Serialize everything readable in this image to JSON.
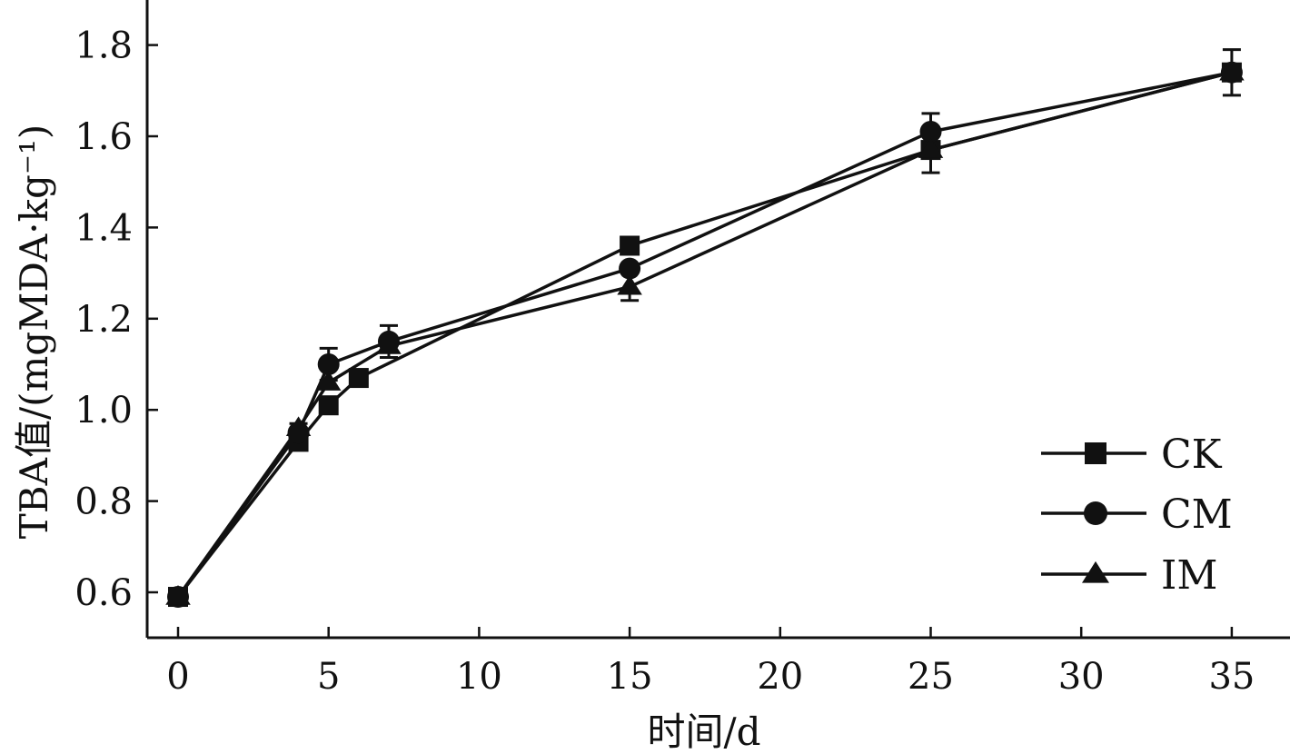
{
  "chart_data": {
    "type": "line",
    "title": "",
    "xlabel": "时间/d",
    "ylabel": "TBA值/(mgMDA·kg⁻¹)",
    "xlim": [
      -1,
      37
    ],
    "ylim": [
      0.51,
      1.9
    ],
    "x_ticks": [
      0,
      5,
      10,
      15,
      20,
      25,
      30,
      35
    ],
    "x_tick_labels": [
      "0",
      "5",
      "10",
      "15",
      "20",
      "25",
      "30",
      "35"
    ],
    "y_ticks": [
      0.6,
      0.8,
      1.0,
      1.2,
      1.4,
      1.6,
      1.8
    ],
    "y_tick_labels": [
      "0.6",
      "0.8",
      "1.0",
      "1.2",
      "1.4",
      "1.6",
      "1.8"
    ],
    "grid": false,
    "legend_position": "bottom-right",
    "series": [
      {
        "name": "CK",
        "marker": "square",
        "x": [
          0,
          4,
          5,
          6,
          15,
          25,
          35
        ],
        "y": [
          0.59,
          0.93,
          1.01,
          1.07,
          1.36,
          1.57,
          1.74
        ],
        "error": [
          0,
          0,
          0,
          0,
          0,
          0,
          0
        ]
      },
      {
        "name": "CM",
        "marker": "circle",
        "x": [
          0,
          4,
          5,
          7,
          15,
          25,
          35
        ],
        "y": [
          0.59,
          0.95,
          1.1,
          1.15,
          1.31,
          1.61,
          1.74
        ],
        "error": [
          0,
          0.02,
          0.035,
          0.035,
          0,
          0.04,
          0.05
        ]
      },
      {
        "name": "IM",
        "marker": "triangle",
        "x": [
          0,
          4,
          5,
          7,
          15,
          25,
          35
        ],
        "y": [
          0.59,
          0.96,
          1.06,
          1.14,
          1.27,
          1.57,
          1.74
        ],
        "error": [
          0,
          0,
          0,
          0,
          0.03,
          0.05,
          0
        ]
      }
    ]
  }
}
